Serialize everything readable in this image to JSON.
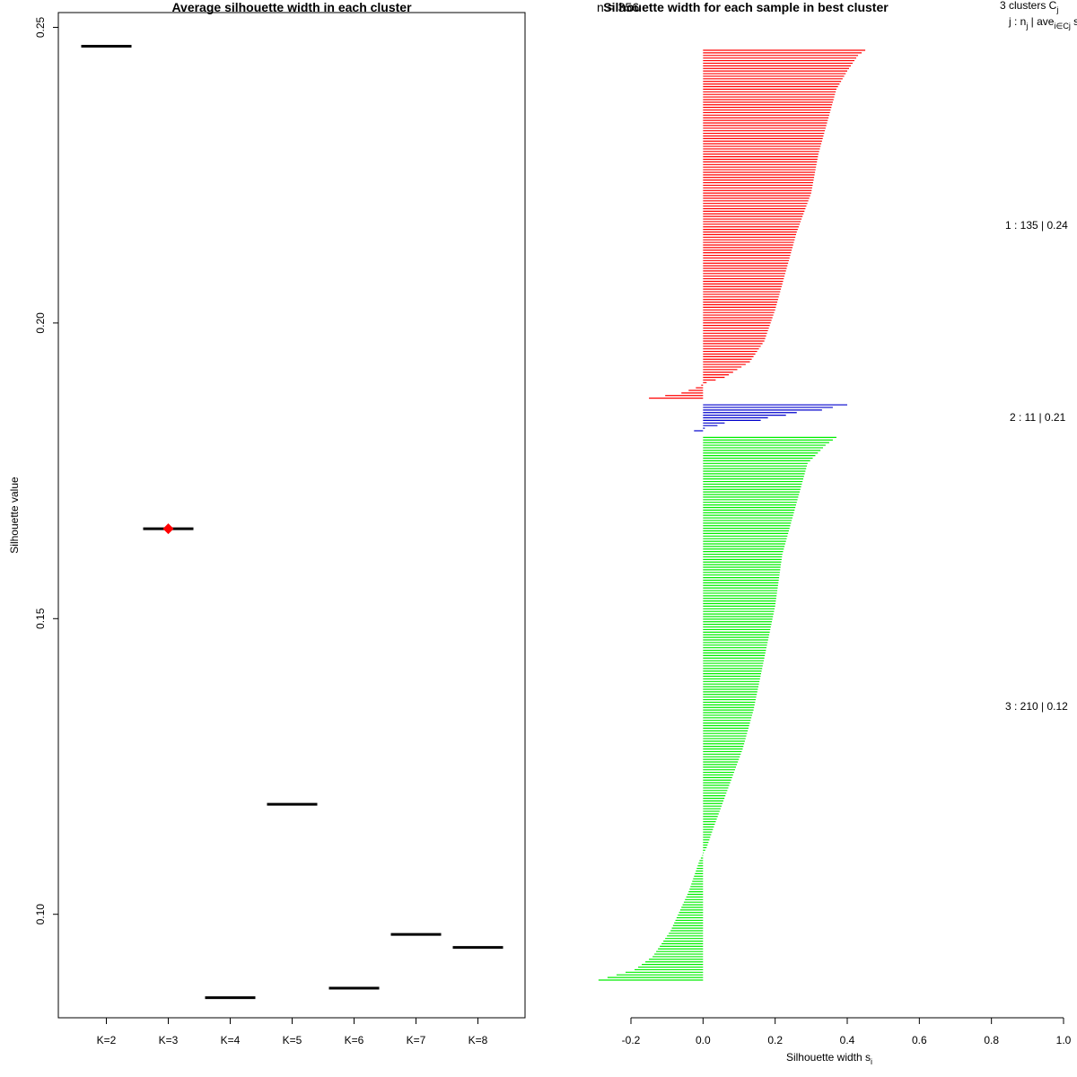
{
  "left_panel": {
    "title": "Average silhouette width in each cluster",
    "ylabel": "Silhouette value",
    "yticks": [
      "0.10",
      "0.15",
      "0.20",
      "0.25"
    ]
  },
  "right_panel": {
    "title": "Silhouette width for each sample in best cluster",
    "overlap_text": "n = 356",
    "xlabel": "Silhouette width s",
    "xlabel_sub": "i",
    "xticks": [
      "-0.2",
      "0.0",
      "0.2",
      "0.4",
      "0.6",
      "0.8",
      "1.0"
    ],
    "legend_header_1": "3  clusters  C",
    "legend_header_1_sub": "j",
    "legend_header_2": "j :  n",
    "legend_header_2_sub": "j",
    "legend_header_2_rest": " | ave",
    "legend_header_2_sub2": "i∈Cj",
    "legend_header_2_tail": "  s",
    "cluster_labels": [
      "1 :  135  |  0.24",
      "2 :  11  |  0.21",
      "3 :  210  |  0.12"
    ]
  },
  "chart_data": [
    {
      "type": "scatter",
      "title": "Average silhouette width in each cluster",
      "xlabel": "",
      "ylabel": "Silhouette value",
      "categories": [
        "K=2",
        "K=3",
        "K=4",
        "K=5",
        "K=6",
        "K=7",
        "K=8"
      ],
      "values": [
        0.2468,
        0.1652,
        0.0859,
        0.1186,
        0.0875,
        0.0966,
        0.0944
      ],
      "best": "K=3",
      "best_color": "#ff0000",
      "line_color": "#000000",
      "ylim": [
        0.0825,
        0.2525
      ]
    },
    {
      "type": "bar",
      "orientation": "horizontal",
      "title": "Silhouette width for each sample in best cluster",
      "xlabel": "Silhouette width s_i",
      "xlim": [
        -0.2,
        1.0
      ],
      "series": [
        {
          "name": "1",
          "n": 135,
          "average": 0.24,
          "color": "#ff0000",
          "anchors": [
            [
              0,
              0.45
            ],
            [
              2,
              0.43
            ],
            [
              8,
              0.4
            ],
            [
              15,
              0.37
            ],
            [
              25,
              0.35
            ],
            [
              40,
              0.32
            ],
            [
              55,
              0.3
            ],
            [
              70,
              0.26
            ],
            [
              85,
              0.23
            ],
            [
              100,
              0.2
            ],
            [
              112,
              0.17
            ],
            [
              120,
              0.13
            ],
            [
              126,
              0.06
            ],
            [
              128,
              0.01
            ],
            [
              130,
              -0.02
            ],
            [
              132,
              -0.06
            ],
            [
              134,
              -0.15
            ]
          ]
        },
        {
          "name": "2",
          "n": 11,
          "average": 0.21,
          "color": "#0000cc",
          "anchors": [
            [
              0,
              0.4
            ],
            [
              1,
              0.36
            ],
            [
              2,
              0.33
            ],
            [
              3,
              0.26
            ],
            [
              4,
              0.23
            ],
            [
              5,
              0.18
            ],
            [
              6,
              0.16
            ],
            [
              7,
              0.06
            ],
            [
              8,
              0.04
            ],
            [
              9,
              0.005
            ],
            [
              10,
              -0.025
            ]
          ]
        },
        {
          "name": "3",
          "n": 210,
          "average": 0.12,
          "color": "#00ee00",
          "anchors": [
            [
              0,
              0.37
            ],
            [
              3,
              0.34
            ],
            [
              10,
              0.29
            ],
            [
              25,
              0.26
            ],
            [
              45,
              0.22
            ],
            [
              65,
              0.2
            ],
            [
              85,
              0.17
            ],
            [
              105,
              0.14
            ],
            [
              120,
              0.11
            ],
            [
              135,
              0.07
            ],
            [
              150,
              0.03
            ],
            [
              158,
              0.01
            ],
            [
              163,
              -0.01
            ],
            [
              175,
              -0.04
            ],
            [
              190,
              -0.09
            ],
            [
              200,
              -0.14
            ],
            [
              205,
              -0.19
            ],
            [
              209,
              -0.29
            ]
          ]
        }
      ]
    }
  ]
}
